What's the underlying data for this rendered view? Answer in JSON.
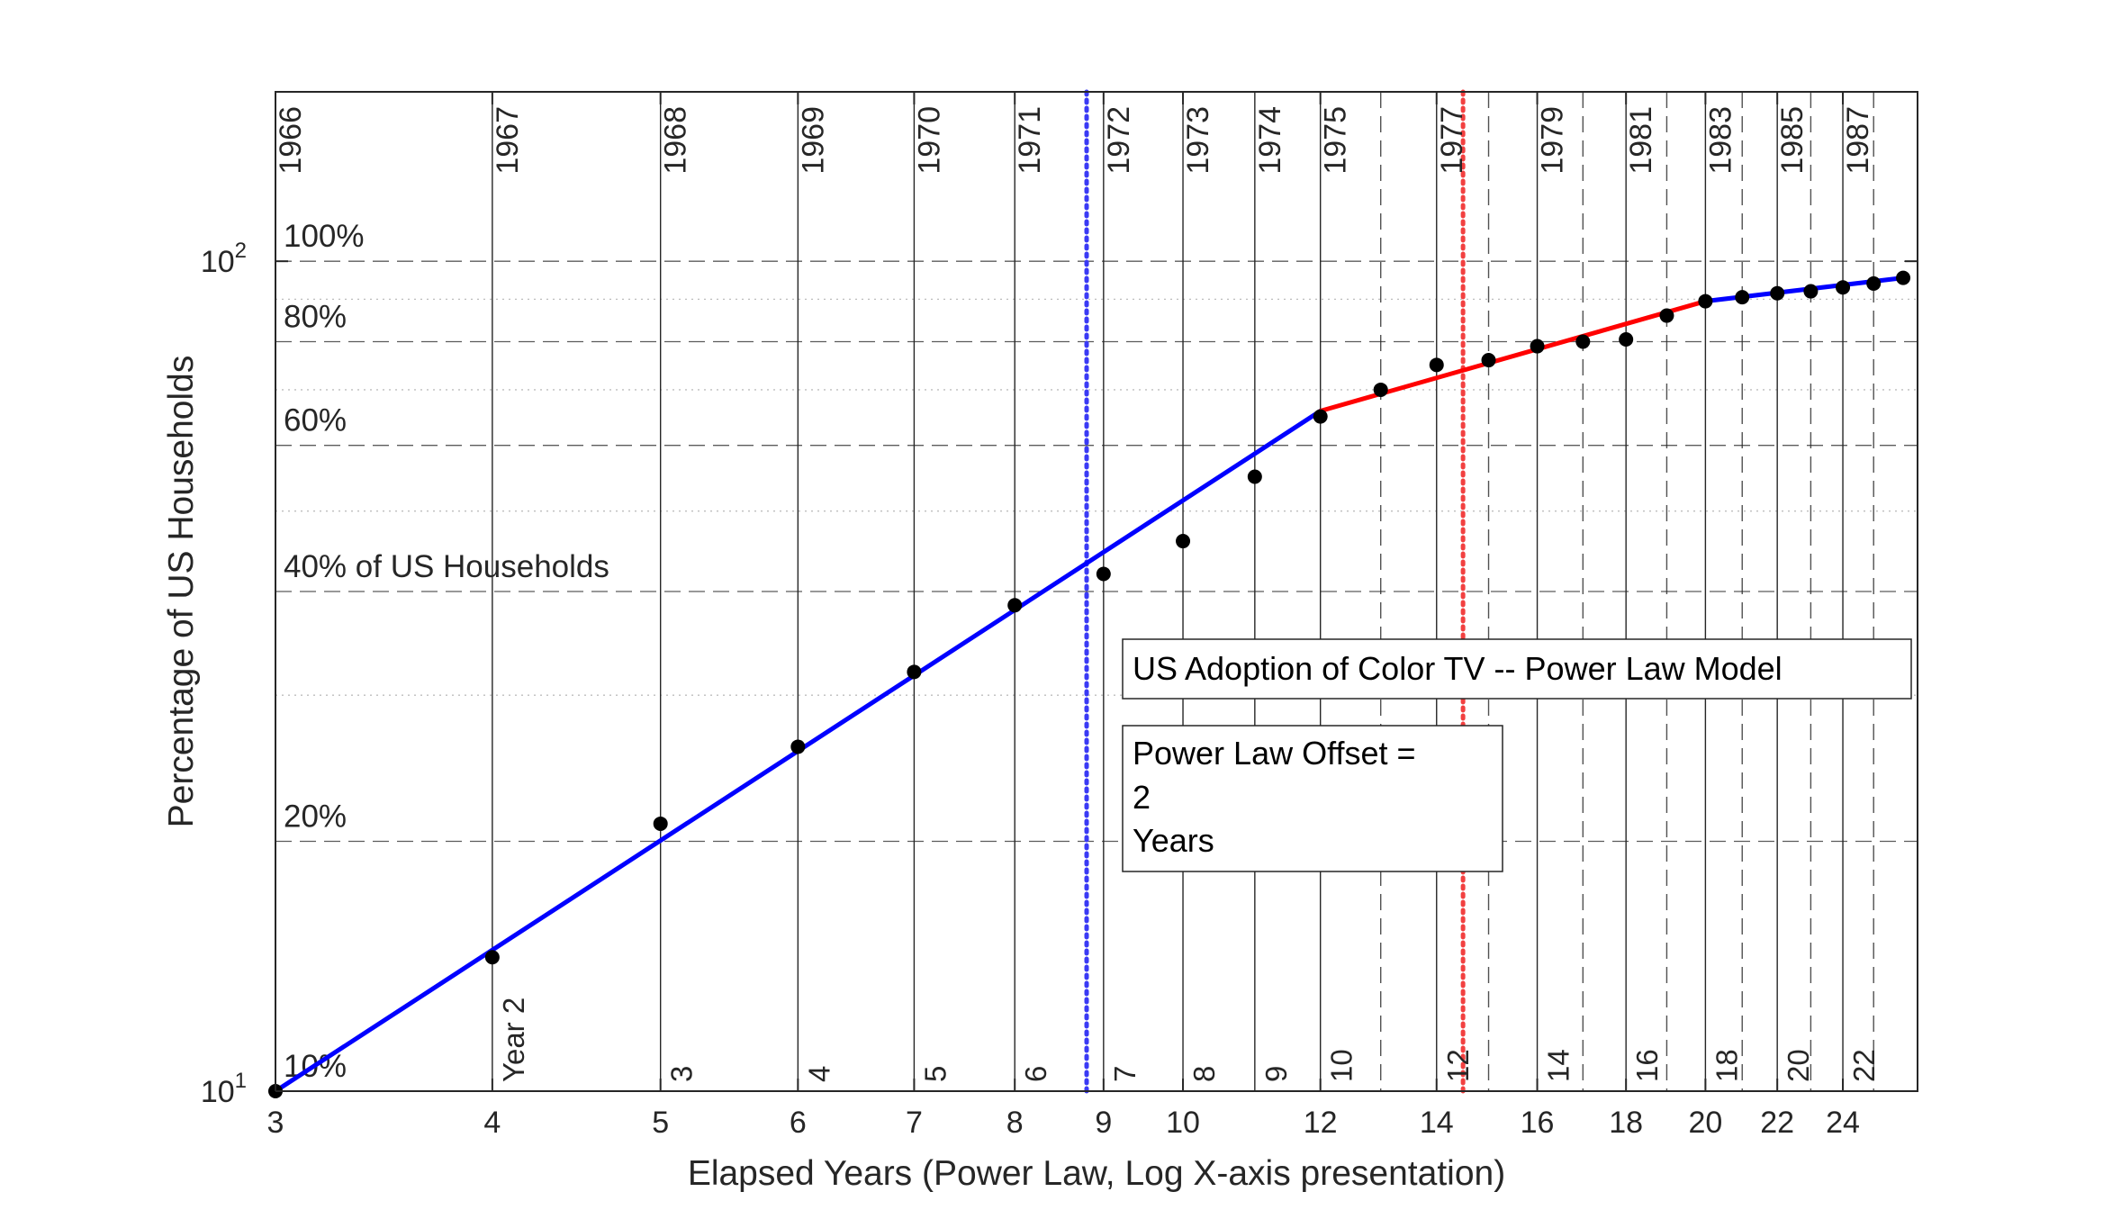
{
  "chart_data": {
    "type": "line",
    "title": "",
    "xlabel": "Elapsed Years (Power Law, Log X-axis presentation)",
    "ylabel": "Percentage of US Households",
    "x_scale": "log",
    "y_scale": "log",
    "xlim": [
      3,
      26.5
    ],
    "ylim": [
      10,
      160
    ],
    "x_ticks": [
      3,
      4,
      5,
      6,
      7,
      8,
      9,
      10,
      12,
      14,
      16,
      18,
      20,
      22,
      24
    ],
    "y_ticks": [
      {
        "value": 10,
        "base": "10",
        "exp": "1"
      },
      {
        "value": 100,
        "base": "10",
        "exp": "2"
      }
    ],
    "year_gridlines": [
      {
        "x": 3,
        "year": "1966",
        "style": "solid"
      },
      {
        "x": 4,
        "year": "1967",
        "style": "solid"
      },
      {
        "x": 5,
        "year": "1968",
        "style": "solid"
      },
      {
        "x": 6,
        "year": "1969",
        "style": "solid"
      },
      {
        "x": 7,
        "year": "1970",
        "style": "solid"
      },
      {
        "x": 8,
        "year": "1971",
        "style": "solid"
      },
      {
        "x": 9,
        "year": "1972",
        "style": "solid"
      },
      {
        "x": 10,
        "year": "1973",
        "style": "solid"
      },
      {
        "x": 11,
        "year": "1974",
        "style": "solid"
      },
      {
        "x": 12,
        "year": "1975",
        "style": "solid"
      },
      {
        "x": 13,
        "year": "",
        "style": "dashed"
      },
      {
        "x": 14,
        "year": "1977",
        "style": "solid"
      },
      {
        "x": 15,
        "year": "",
        "style": "dashed"
      },
      {
        "x": 16,
        "year": "1979",
        "style": "solid"
      },
      {
        "x": 17,
        "year": "",
        "style": "dashed"
      },
      {
        "x": 18,
        "year": "1981",
        "style": "solid"
      },
      {
        "x": 19,
        "year": "",
        "style": "dashed"
      },
      {
        "x": 20,
        "year": "1983",
        "style": "solid"
      },
      {
        "x": 21,
        "year": "",
        "style": "dashed"
      },
      {
        "x": 22,
        "year": "1985",
        "style": "solid"
      },
      {
        "x": 23,
        "year": "",
        "style": "dashed"
      },
      {
        "x": 24,
        "year": "1987",
        "style": "solid"
      },
      {
        "x": 25,
        "year": "",
        "style": "dashed"
      }
    ],
    "elapsed_labels": [
      {
        "x": 4,
        "text": "Year 2"
      },
      {
        "x": 5,
        "text": "3"
      },
      {
        "x": 6,
        "text": "4"
      },
      {
        "x": 7,
        "text": "5"
      },
      {
        "x": 8,
        "text": "6"
      },
      {
        "x": 9,
        "text": "7"
      },
      {
        "x": 10,
        "text": "8"
      },
      {
        "x": 11,
        "text": "9"
      },
      {
        "x": 12,
        "text": "10"
      },
      {
        "x": 14,
        "text": "12"
      },
      {
        "x": 16,
        "text": "14"
      },
      {
        "x": 18,
        "text": "16"
      },
      {
        "x": 20,
        "text": "18"
      },
      {
        "x": 22,
        "text": "20"
      },
      {
        "x": 24,
        "text": "22"
      }
    ],
    "percent_lines": [
      {
        "y": 100,
        "label": "100%",
        "style": "dashed"
      },
      {
        "y": 90,
        "label": "",
        "style": "dotted"
      },
      {
        "y": 80,
        "label": "80%",
        "style": "dashed"
      },
      {
        "y": 70,
        "label": "",
        "style": "dotted"
      },
      {
        "y": 60,
        "label": "60%",
        "style": "dashed"
      },
      {
        "y": 50,
        "label": "",
        "style": "dotted"
      },
      {
        "y": 40,
        "label": "40% of US Households",
        "style": "dashed"
      },
      {
        "y": 30,
        "label": "",
        "style": "dotted"
      },
      {
        "y": 20,
        "label": "20%",
        "style": "dashed"
      },
      {
        "y": 10,
        "label": "10%",
        "style": "none"
      }
    ],
    "data_points": {
      "name": "",
      "color": "#000000",
      "x": [
        3,
        4,
        5,
        6,
        7,
        8,
        9,
        10,
        11,
        12,
        13,
        14,
        15,
        16,
        17,
        18,
        19,
        20,
        21,
        22,
        23,
        24,
        25,
        26
      ],
      "y": [
        10,
        14.5,
        21,
        26,
        32,
        38.5,
        42,
        46,
        55,
        65,
        70,
        75,
        76,
        79,
        80,
        80.5,
        86,
        89.5,
        90.5,
        91.5,
        92,
        93,
        94,
        95.5
      ]
    },
    "fit_lines": [
      {
        "name": "",
        "color": "#0000ff",
        "x": [
          3,
          12
        ],
        "y": [
          10,
          66
        ]
      },
      {
        "name": "",
        "color": "#ff0000",
        "x": [
          12,
          20
        ],
        "y": [
          66,
          89.5
        ]
      },
      {
        "name": "",
        "color": "#0000ff",
        "x": [
          20,
          26
        ],
        "y": [
          89.5,
          95.5
        ]
      }
    ],
    "vertical_markers": [
      {
        "x": 8.8,
        "color": "#3a3af5",
        "style": "dotted"
      },
      {
        "x": 14.5,
        "color": "#f24040",
        "style": "dotted"
      }
    ],
    "annotations": {
      "title_box": "US Adoption of Color TV -- Power Law Model",
      "offset_box": [
        "Power Law Offset =",
        "2",
        "Years"
      ]
    }
  }
}
